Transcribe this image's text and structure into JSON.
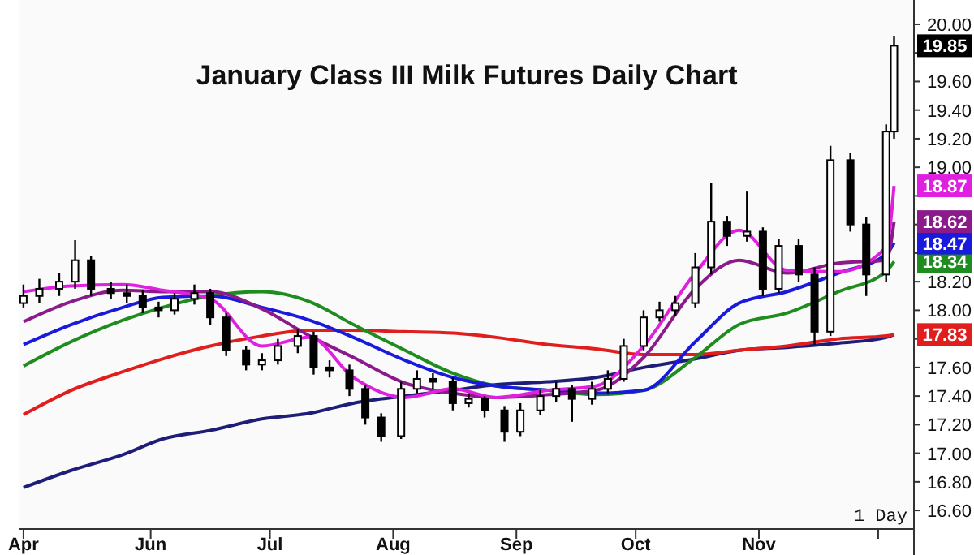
{
  "chart_data": {
    "type": "candlestick",
    "title": "January Class III Milk Futures Daily Chart",
    "annotations": [
      "1 Day"
    ],
    "xlim": [
      "--04-29",
      "--12-10"
    ],
    "xticks": [
      {
        "value": "--04-30",
        "label": "Apr"
      },
      {
        "value": "--06-01",
        "label": "Jun"
      },
      {
        "value": "--07-01",
        "label": "Jul"
      },
      {
        "value": "--08-01",
        "label": "Aug"
      },
      {
        "value": "--09-01",
        "label": "Sep"
      },
      {
        "value": "--10-01",
        "label": "Oct"
      },
      {
        "value": "--11-01",
        "label": "Nov"
      },
      {
        "value": "--12-01",
        "label": null
      }
    ],
    "ylim": [
      16.47,
      20.17
    ],
    "yticks": [
      {
        "value": 16.6,
        "label": "16.60"
      },
      {
        "value": 16.8,
        "label": "16.80"
      },
      {
        "value": 17.0,
        "label": "17.00"
      },
      {
        "value": 17.2,
        "label": "17.20"
      },
      {
        "value": 17.4,
        "label": "17.40"
      },
      {
        "value": 17.6,
        "label": "17.60"
      },
      {
        "value": 17.8,
        "label": null
      },
      {
        "value": 18.0,
        "label": "18.00"
      },
      {
        "value": 18.2,
        "label": "18.20"
      },
      {
        "value": 18.4,
        "label": null
      },
      {
        "value": 18.6,
        "label": null
      },
      {
        "value": 18.8,
        "label": null
      },
      {
        "value": 19.0,
        "label": "19.00"
      },
      {
        "value": 19.2,
        "label": "19.20"
      },
      {
        "value": 19.4,
        "label": "19.40"
      },
      {
        "value": 19.6,
        "label": "19.60"
      },
      {
        "value": 19.8,
        "label": null
      },
      {
        "value": 20.0,
        "label": "20.00"
      }
    ],
    "series": [
      {
        "color": "#000000",
        "x": [
          "--04-30",
          "--05-04",
          "--05-09",
          "--05-13",
          "--05-17",
          "--05-22",
          "--05-26",
          "--05-30",
          "--06-03",
          "--06-07",
          "--06-12",
          "--06-16",
          "--06-20",
          "--06-25",
          "--06-29",
          "--07-03",
          "--07-08",
          "--07-12",
          "--07-16",
          "--07-21",
          "--07-25",
          "--07-29",
          "--08-03",
          "--08-07",
          "--08-11",
          "--08-16",
          "--08-20",
          "--08-24",
          "--08-29",
          "--09-02",
          "--09-07",
          "--09-11",
          "--09-15",
          "--09-20",
          "--09-24",
          "--09-28",
          "--10-03",
          "--10-07",
          "--10-11",
          "--10-16",
          "--10-20",
          "--10-24",
          "--10-29",
          "--11-02",
          "--11-06",
          "--11-11",
          "--11-15",
          "--11-19",
          "--11-24",
          "--11-28",
          "--12-03",
          "--12-05"
        ],
        "ohlc": [
          [
            18.05,
            18.18,
            18.02,
            18.1
          ],
          [
            18.1,
            18.22,
            18.05,
            18.15
          ],
          [
            18.15,
            18.26,
            18.1,
            18.2
          ],
          [
            18.2,
            18.49,
            18.15,
            18.35
          ],
          [
            18.35,
            18.38,
            18.1,
            18.15
          ],
          [
            18.15,
            18.2,
            18.08,
            18.12
          ],
          [
            18.12,
            18.18,
            18.05,
            18.1
          ],
          [
            18.1,
            18.14,
            17.98,
            18.02
          ],
          [
            18.02,
            18.06,
            17.95,
            18.0
          ],
          [
            18.0,
            18.12,
            17.97,
            18.08
          ],
          [
            18.08,
            18.18,
            18.04,
            18.12
          ],
          [
            18.12,
            18.15,
            17.9,
            17.95
          ],
          [
            17.95,
            17.98,
            17.68,
            17.72
          ],
          [
            17.72,
            17.75,
            17.58,
            17.62
          ],
          [
            17.62,
            17.7,
            17.58,
            17.65
          ],
          [
            17.65,
            17.8,
            17.62,
            17.75
          ],
          [
            17.75,
            17.87,
            17.7,
            17.82
          ],
          [
            17.82,
            17.85,
            17.55,
            17.6
          ],
          [
            17.6,
            17.65,
            17.53,
            17.58
          ],
          [
            17.58,
            17.62,
            17.4,
            17.45
          ],
          [
            17.45,
            17.48,
            17.2,
            17.25
          ],
          [
            17.25,
            17.28,
            17.08,
            17.12
          ],
          [
            17.12,
            17.5,
            17.1,
            17.45
          ],
          [
            17.45,
            17.58,
            17.42,
            17.52
          ],
          [
            17.52,
            17.56,
            17.45,
            17.5
          ],
          [
            17.5,
            17.53,
            17.3,
            17.35
          ],
          [
            17.35,
            17.42,
            17.32,
            17.38
          ],
          [
            17.38,
            17.4,
            17.25,
            17.3
          ],
          [
            17.3,
            17.33,
            17.08,
            17.15
          ],
          [
            17.15,
            17.35,
            17.12,
            17.3
          ],
          [
            17.3,
            17.44,
            17.27,
            17.4
          ],
          [
            17.4,
            17.5,
            17.36,
            17.45
          ],
          [
            17.45,
            17.48,
            17.22,
            17.38
          ],
          [
            17.38,
            17.5,
            17.34,
            17.45
          ],
          [
            17.45,
            17.58,
            17.42,
            17.52
          ],
          [
            17.52,
            17.8,
            17.5,
            17.75
          ],
          [
            17.75,
            18.0,
            17.72,
            17.95
          ],
          [
            17.95,
            18.06,
            17.92,
            18.0
          ],
          [
            18.0,
            18.1,
            17.96,
            18.05
          ],
          [
            18.05,
            18.4,
            18.02,
            18.3
          ],
          [
            18.3,
            18.89,
            18.25,
            18.62
          ],
          [
            18.62,
            18.66,
            18.45,
            18.52
          ],
          [
            18.52,
            18.83,
            18.48,
            18.55
          ],
          [
            18.55,
            18.58,
            18.1,
            18.15
          ],
          [
            18.15,
            18.5,
            18.12,
            18.45
          ],
          [
            18.45,
            18.5,
            18.2,
            18.25
          ],
          [
            18.25,
            18.3,
            17.76,
            17.85
          ],
          [
            17.85,
            19.15,
            17.82,
            19.05
          ],
          [
            19.05,
            19.1,
            18.55,
            18.6
          ],
          [
            18.6,
            18.65,
            18.1,
            18.25
          ],
          [
            18.25,
            19.3,
            18.2,
            19.25
          ],
          [
            19.25,
            19.92,
            19.2,
            19.85
          ]
        ],
        "value_labels": [
          null,
          null,
          null,
          null,
          null,
          null,
          null,
          null,
          null,
          null,
          null,
          null,
          null,
          null,
          null,
          null,
          null,
          null,
          null,
          null,
          null,
          null,
          null,
          null,
          null,
          null,
          null,
          null,
          null,
          null,
          null,
          null,
          null,
          null,
          null,
          null,
          null,
          null,
          null,
          null,
          null,
          null,
          null,
          null,
          null,
          null,
          null,
          null,
          null,
          null,
          null,
          "19.85"
        ]
      },
      {
        "type": "line",
        "color": "#1e1e78",
        "x": [
          "--04-30",
          "--05-12",
          "--05-25",
          "--06-04",
          "--06-16",
          "--06-29",
          "--07-11",
          "--07-22",
          "--08-04",
          "--08-16",
          "--08-27",
          "--09-09",
          "--09-21",
          "--10-03",
          "--10-16",
          "--10-27",
          "--11-08",
          "--11-21",
          "--12-03",
          "--12-05"
        ],
        "values": [
          16.76,
          16.88,
          16.99,
          17.1,
          17.16,
          17.24,
          17.28,
          17.35,
          17.4,
          17.44,
          17.48,
          17.5,
          17.53,
          17.6,
          17.66,
          17.72,
          17.74,
          17.77,
          17.81,
          17.83
        ]
      },
      {
        "type": "line",
        "color": "#e01e1e",
        "x": [
          "--04-30",
          "--05-12",
          "--05-25",
          "--06-04",
          "--06-16",
          "--06-29",
          "--07-11",
          "--07-22",
          "--08-04",
          "--08-16",
          "--08-27",
          "--09-09",
          "--09-21",
          "--10-03",
          "--10-16",
          "--10-27",
          "--11-08",
          "--11-21",
          "--12-03",
          "--12-05"
        ],
        "values": [
          17.27,
          17.44,
          17.57,
          17.66,
          17.75,
          17.82,
          17.86,
          17.86,
          17.85,
          17.84,
          17.81,
          17.76,
          17.73,
          17.69,
          17.69,
          17.72,
          17.75,
          17.8,
          17.82,
          17.83
        ],
        "value_labels": [
          null,
          null,
          null,
          null,
          null,
          null,
          null,
          null,
          null,
          null,
          null,
          null,
          null,
          null,
          null,
          null,
          null,
          null,
          null,
          "17.83"
        ]
      },
      {
        "type": "line",
        "color": "#1e8c1e",
        "x": [
          "--04-30",
          "--05-12",
          "--05-25",
          "--06-04",
          "--06-16",
          "--06-29",
          "--07-11",
          "--07-22",
          "--08-04",
          "--08-16",
          "--08-27",
          "--09-09",
          "--09-21",
          "--10-03",
          "--10-16",
          "--10-27",
          "--11-08",
          "--11-21",
          "--12-03",
          "--12-05"
        ],
        "values": [
          17.61,
          17.78,
          17.93,
          18.02,
          18.1,
          18.13,
          18.06,
          17.9,
          17.72,
          17.56,
          17.47,
          17.44,
          17.41,
          17.44,
          17.67,
          17.9,
          17.98,
          18.13,
          18.27,
          18.34
        ],
        "value_labels": [
          null,
          null,
          null,
          null,
          null,
          null,
          null,
          null,
          null,
          null,
          null,
          null,
          null,
          null,
          null,
          null,
          null,
          null,
          null,
          "18.34"
        ]
      },
      {
        "type": "line",
        "color": "#1a1adc",
        "x": [
          "--04-30",
          "--05-12",
          "--05-25",
          "--06-04",
          "--06-16",
          "--06-29",
          "--07-11",
          "--07-22",
          "--08-04",
          "--08-16",
          "--08-27",
          "--09-09",
          "--09-21",
          "--10-03",
          "--10-16",
          "--10-27",
          "--11-08",
          "--11-21",
          "--12-03",
          "--12-05"
        ],
        "values": [
          17.76,
          17.9,
          18.02,
          18.09,
          18.1,
          18.02,
          17.93,
          17.81,
          17.65,
          17.53,
          17.47,
          17.44,
          17.42,
          17.44,
          17.78,
          18.05,
          18.13,
          18.26,
          18.39,
          18.47
        ],
        "value_labels": [
          null,
          null,
          null,
          null,
          null,
          null,
          null,
          null,
          null,
          null,
          null,
          null,
          null,
          null,
          null,
          null,
          null,
          null,
          null,
          "18.47"
        ]
      },
      {
        "type": "line",
        "color": "#8b1a8b",
        "x": [
          "--04-30",
          "--05-12",
          "--05-25",
          "--06-04",
          "--06-16",
          "--06-29",
          "--07-11",
          "--07-22",
          "--08-04",
          "--08-16",
          "--08-27",
          "--09-09",
          "--09-21",
          "--10-03",
          "--10-16",
          "--10-27",
          "--11-08",
          "--11-21",
          "--12-03",
          "--12-05"
        ],
        "values": [
          17.92,
          18.06,
          18.14,
          18.13,
          18.13,
          18.01,
          17.82,
          17.67,
          17.49,
          17.42,
          17.39,
          17.41,
          17.44,
          17.67,
          18.15,
          18.35,
          18.26,
          18.33,
          18.35,
          18.62
        ],
        "value_labels": [
          null,
          null,
          null,
          null,
          null,
          null,
          null,
          null,
          null,
          null,
          null,
          null,
          null,
          null,
          null,
          null,
          null,
          null,
          null,
          "18.62"
        ]
      },
      {
        "type": "line",
        "color": "#e020e0",
        "x": [
          "--04-30",
          "--05-12",
          "--05-25",
          "--06-04",
          "--06-16",
          "--06-29",
          "--07-11",
          "--07-22",
          "--08-04",
          "--08-16",
          "--08-27",
          "--09-09",
          "--09-21",
          "--10-03",
          "--10-16",
          "--10-27",
          "--11-08",
          "--11-21",
          "--12-03",
          "--12-05"
        ],
        "values": [
          18.13,
          18.17,
          18.18,
          18.14,
          18.08,
          17.75,
          17.81,
          17.53,
          17.39,
          17.45,
          17.39,
          17.44,
          17.47,
          17.75,
          18.26,
          18.56,
          18.28,
          18.27,
          18.44,
          18.87
        ],
        "value_labels": [
          null,
          null,
          null,
          null,
          null,
          null,
          null,
          null,
          null,
          null,
          null,
          null,
          null,
          null,
          null,
          null,
          null,
          null,
          null,
          "18.87"
        ]
      }
    ]
  }
}
